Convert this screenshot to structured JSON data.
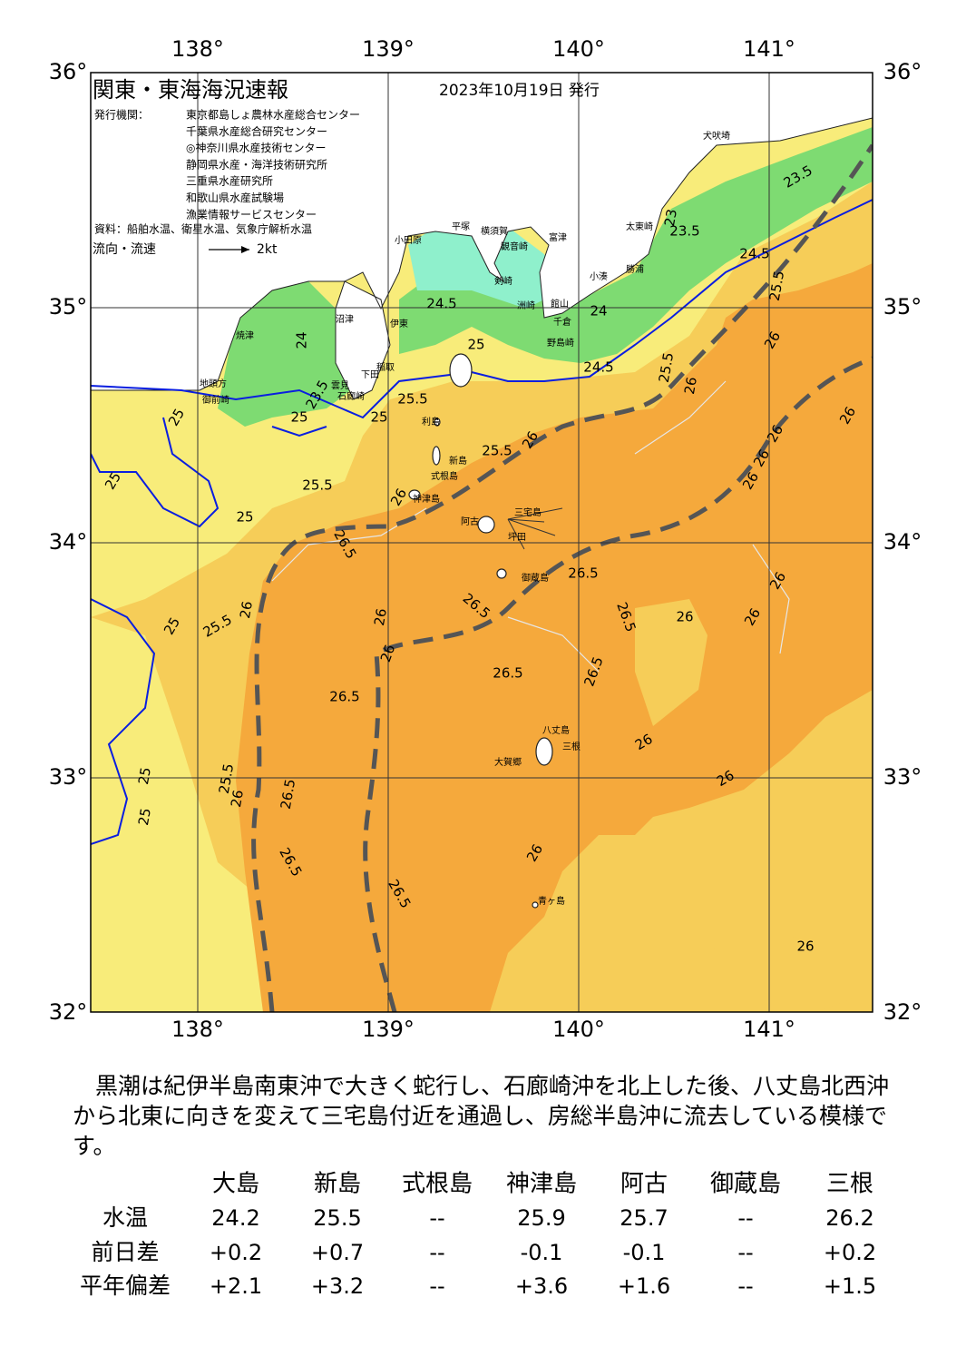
{
  "map": {
    "title": "関東・東海海況速報",
    "date": "2023年10月19日 発行",
    "issuer_label": "発行機関：",
    "issuers": [
      "東京都島しょ農林水産総合センター",
      "千葉県水産総合研究センター",
      "◎神奈川県水産技術センター",
      "静岡県水産・海洋技術研究所",
      "三重県水産研究所",
      "和歌山県水産試験場",
      "漁業情報サービスセンター"
    ],
    "source": "資料：船舶水温、衛星水温、気象庁解析水温",
    "legend_label": "流向・流速",
    "legend_speed": "2kt",
    "lon_ticks": [
      {
        "value": 138,
        "label": "138°"
      },
      {
        "value": 139,
        "label": "139°"
      },
      {
        "value": 140,
        "label": "140°"
      },
      {
        "value": 141,
        "label": "141°"
      }
    ],
    "lat_ticks": [
      {
        "value": 36,
        "label": "36°"
      },
      {
        "value": 35,
        "label": "35°"
      },
      {
        "value": 34,
        "label": "34°"
      },
      {
        "value": 33,
        "label": "33°"
      },
      {
        "value": 32,
        "label": "32°"
      }
    ],
    "place_names": [
      "犬吠埼",
      "太東崎",
      "勝浦",
      "小湊",
      "野島崎",
      "千倉",
      "館山",
      "洲崎",
      "富津",
      "観音崎",
      "横須賀",
      "剣崎",
      "平塚",
      "小田原",
      "沼津",
      "伊東",
      "稲取",
      "下田",
      "雲見",
      "石廊崎",
      "焼津",
      "地頭方",
      "御前崎",
      "利島",
      "新島",
      "式根島",
      "神津島",
      "阿古",
      "三宅島",
      "坪田",
      "御蔵島",
      "八丈島",
      "三根",
      "大賀郷",
      "青ヶ島"
    ],
    "contour_labels": [
      24.5,
      25,
      25.5,
      25,
      25,
      23.5,
      24,
      25,
      25,
      25.5,
      25,
      26,
      25.5,
      26,
      26.5,
      26,
      25.5,
      25,
      26,
      26,
      26.5,
      26.5,
      26.5,
      26.5,
      26.5,
      26,
      26.5,
      26,
      26,
      25.5,
      26,
      26.5,
      26.5,
      26.5,
      26,
      24.5,
      25.5,
      26,
      24,
      23,
      23.5,
      24.5,
      25.5,
      26,
      26,
      26,
      26,
      26,
      26,
      26,
      26,
      23.5,
      25,
      25
    ]
  },
  "summary": "黒潮は紀伊半島南東沖で大きく蛇行し、石廊崎沖を北上した後、八丈島北西沖から北東に向きを変えて三宅島付近を通過し、房総半島沖に流去している模様です。",
  "table": {
    "columns": [
      "大島",
      "新島",
      "式根島",
      "神津島",
      "阿古",
      "御蔵島",
      "三根"
    ],
    "rows": [
      {
        "label": "水温",
        "cells": [
          "24.2",
          "25.5",
          "--",
          "25.9",
          "25.7",
          "--",
          "26.2"
        ]
      },
      {
        "label": "前日差",
        "cells": [
          "+0.2",
          "+0.7",
          "--",
          "-0.1",
          "-0.1",
          "--",
          "+0.2"
        ]
      },
      {
        "label": "平年偏差",
        "cells": [
          "+2.1",
          "+3.2",
          "--",
          "+3.6",
          "+1.6",
          "--",
          "+1.5"
        ]
      }
    ]
  }
}
